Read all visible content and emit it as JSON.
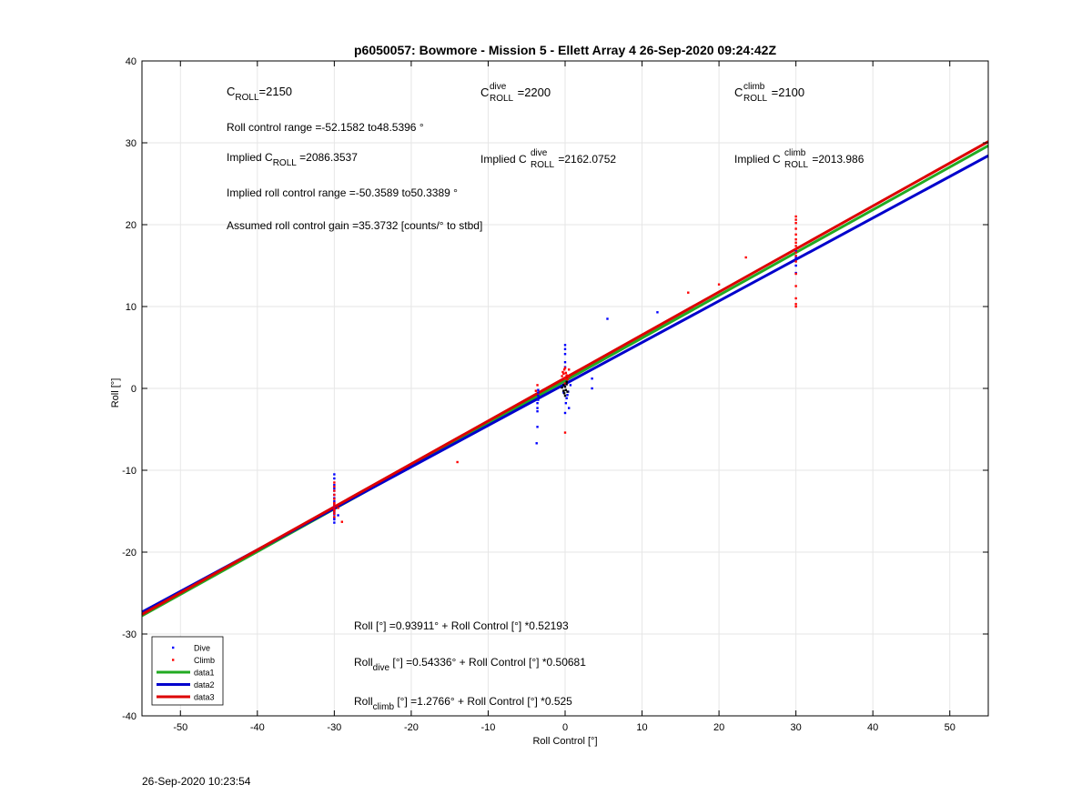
{
  "chart_data": {
    "type": "scatter",
    "title": "p6050057: Bowmore - Mission 5 - Ellett Array 4 26-Sep-2020 09:24:42Z",
    "xlabel": "Roll Control [°]",
    "ylabel": "Roll [°]",
    "xlim": [
      -55,
      55
    ],
    "ylim": [
      -40,
      40
    ],
    "xticks": [
      -50,
      -40,
      -30,
      -20,
      -10,
      0,
      10,
      20,
      30,
      40,
      50
    ],
    "yticks": [
      -40,
      -30,
      -20,
      -10,
      0,
      10,
      20,
      30,
      40
    ],
    "grid": true,
    "legend_position": "bottom-left",
    "colors": {
      "dive": "#0000ff",
      "climb": "#ff0000",
      "data1": "#22aa22",
      "data2": "#0000cc",
      "data3": "#dd0000",
      "center": "#000000"
    },
    "series": [
      {
        "name": "Dive",
        "kind": "points",
        "color": "#0000ff",
        "x": [
          -30,
          -30,
          -30,
          -30,
          -30,
          -30,
          -30,
          -30,
          -30,
          -30,
          -30,
          -30,
          -30,
          -30,
          -30,
          -30,
          -30,
          -30,
          -30,
          -30,
          -29.5,
          -3.7,
          -3.6,
          -3.6,
          -3.6,
          -3.6,
          -3.5,
          -3.5,
          -3.5,
          -3.5,
          -0.3,
          -0.2,
          0,
          0,
          0,
          0,
          0,
          0,
          0.1,
          0.2,
          0.3,
          0.4,
          0.5,
          0.7,
          3.5,
          3.5,
          5.5,
          12,
          30,
          30,
          30,
          30
        ],
        "y": [
          -10.5,
          -11,
          -11.8,
          -12.5,
          -13,
          -13.4,
          -13.8,
          -14,
          -14.2,
          -14.4,
          -14.6,
          -14.8,
          -15,
          -15.2,
          -15.4,
          -15.8,
          -16,
          -16.4,
          -14.9,
          -12.2,
          -15.5,
          -6.7,
          -4.7,
          -2.8,
          -2.4,
          -1.8,
          -1.4,
          -0.9,
          -0.5,
          -0.2,
          0.3,
          -0.5,
          5.3,
          4.8,
          4.2,
          3.2,
          2.6,
          -3,
          -1.8,
          -1.2,
          -0.8,
          -0.4,
          -2.4,
          0.4,
          1.2,
          0,
          8.5,
          9.3,
          14.1,
          15,
          16,
          16.8
        ]
      },
      {
        "name": "Climb",
        "kind": "points",
        "color": "#ff0000",
        "x": [
          -30,
          -30,
          -30,
          -30,
          -30,
          -30,
          -30,
          -30,
          -30,
          -30,
          -30,
          -30,
          -29.5,
          -29,
          -14,
          -3.8,
          -3.6,
          -0.4,
          -0.3,
          -0.2,
          -0.1,
          0,
          0,
          0,
          0,
          0.1,
          0.2,
          0.3,
          0.5,
          0.5,
          16,
          20,
          23.5,
          30,
          30,
          30,
          30,
          30,
          30,
          30,
          30,
          30,
          30,
          30,
          30,
          30,
          30,
          30,
          30,
          30
        ],
        "y": [
          -11.5,
          -12,
          -12.5,
          -13,
          -13.5,
          -14,
          -14.2,
          -14.5,
          -14.8,
          -15,
          -15.3,
          -15.7,
          -14.6,
          -16.3,
          -9,
          -0.3,
          0.4,
          1.5,
          2,
          1.8,
          2.3,
          2.5,
          1.2,
          0.6,
          -5.4,
          1.9,
          1.6,
          1.1,
          2.3,
          1.4,
          11.7,
          12.7,
          16,
          10,
          10.3,
          11,
          12.5,
          14,
          15.5,
          16.2,
          16.6,
          17,
          17.4,
          17.8,
          18.2,
          18.8,
          19.5,
          20.2,
          20.6,
          21
        ]
      },
      {
        "name": "",
        "kind": "points",
        "color": "#000000",
        "x": [
          -0.4,
          -0.2,
          -0.2,
          -0.1,
          0,
          0,
          0.1,
          0.2,
          0.2,
          0.3
        ],
        "y": [
          0.1,
          -0.3,
          0.4,
          -0.6,
          0.2,
          -0.9,
          -0.2,
          0.5,
          0.8,
          -0.4
        ]
      },
      {
        "name": "data1",
        "kind": "line",
        "color": "#22aa22",
        "intercept": 0.93911,
        "slope": 0.52193
      },
      {
        "name": "data2",
        "kind": "line",
        "color": "#0000cc",
        "intercept": 0.54336,
        "slope": 0.50681
      },
      {
        "name": "data3",
        "kind": "line",
        "color": "#dd0000",
        "intercept": 1.2766,
        "slope": 0.525
      }
    ],
    "annotations": {
      "c_roll": {
        "name": "C",
        "sub": "ROLL",
        "value": "=2150"
      },
      "c_roll_dive": {
        "name": "C",
        "sup": "dive",
        "sub": "ROLL",
        "value": " =2200"
      },
      "c_roll_climb": {
        "name": "C",
        "sup": "climb",
        "sub": "ROLL",
        "value": " =2100"
      },
      "roll_control_range": "Roll control range =-52.1582 to48.5396 °",
      "implied_c_roll": {
        "prefix": "Implied C",
        "sub": "ROLL",
        "value": " =2086.3537"
      },
      "implied_c_roll_dive": {
        "prefix": "Implied C",
        "sup": "dive",
        "sub": "ROLL",
        "value": " =2162.0752"
      },
      "implied_c_roll_climb": {
        "prefix": "Implied C",
        "sup": "climb",
        "sub": "ROLL",
        "value": " =2013.986"
      },
      "implied_roll_control_range": "Implied roll control range =-50.3589 to50.3389 °",
      "assumed_gain": "Assumed roll control gain =35.3732 [counts/° to stbd]",
      "fit_all": {
        "prefix": "Roll [°] =0.93911° + Roll Control [°] *0.52193"
      },
      "fit_dive": {
        "name": "Roll",
        "sub": "dive",
        "value": " [°] =0.54336° + Roll Control [°] *0.50681"
      },
      "fit_climb": {
        "name": "Roll",
        "sub": "climb",
        "value": " [°] =1.2766° + Roll Control [°] *0.525"
      }
    }
  },
  "footer": {
    "timestamp": "26-Sep-2020 10:23:54"
  }
}
